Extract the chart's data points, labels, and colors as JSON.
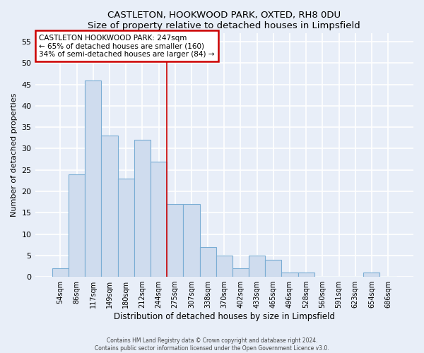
{
  "title": "CASTLETON, HOOKWOOD PARK, OXTED, RH8 0DU",
  "subtitle": "Size of property relative to detached houses in Limpsfield",
  "xlabel": "Distribution of detached houses by size in Limpsfield",
  "ylabel": "Number of detached properties",
  "categories": [
    "54sqm",
    "86sqm",
    "117sqm",
    "149sqm",
    "180sqm",
    "212sqm",
    "244sqm",
    "275sqm",
    "307sqm",
    "338sqm",
    "370sqm",
    "402sqm",
    "433sqm",
    "465sqm",
    "496sqm",
    "528sqm",
    "560sqm",
    "591sqm",
    "623sqm",
    "654sqm",
    "686sqm"
  ],
  "values": [
    2,
    24,
    46,
    33,
    23,
    32,
    27,
    17,
    17,
    7,
    5,
    2,
    5,
    4,
    1,
    1,
    0,
    0,
    0,
    1,
    0
  ],
  "bar_color": "#cfdcee",
  "bar_edge_color": "#7aadd4",
  "highlight_index": 6,
  "highlight_color": "#cc0000",
  "annotation_text_line1": "CASTLETON HOOKWOOD PARK: 247sqm",
  "annotation_text_line2": "← 65% of detached houses are smaller (160)",
  "annotation_text_line3": "34% of semi-detached houses are larger (84) →",
  "ylim": [
    0,
    57
  ],
  "yticks": [
    0,
    5,
    10,
    15,
    20,
    25,
    30,
    35,
    40,
    45,
    50,
    55
  ],
  "bg_color": "#e8eef8",
  "plot_bg_color": "#e8eef8",
  "grid_color": "#ffffff",
  "footer_line1": "Contains HM Land Registry data © Crown copyright and database right 2024.",
  "footer_line2": "Contains public sector information licensed under the Open Government Licence v3.0."
}
